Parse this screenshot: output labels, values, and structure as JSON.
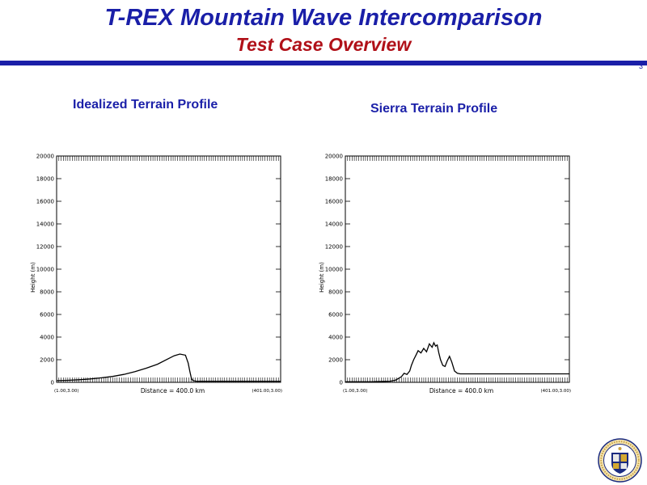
{
  "header": {
    "title": "T-REX Mountain Wave Intercomparison",
    "subtitle": "Test Case Overview",
    "page_number": "3",
    "title_color": "#1a1fa8",
    "subtitle_color": "#b01018"
  },
  "chart_data": [
    {
      "type": "line",
      "title": "Idealized Terrain Profile",
      "ylabel": "Height (m)",
      "xlabel": "Distance = 400.0 km",
      "xlim": [
        0,
        400
      ],
      "ylim": [
        0,
        20000
      ],
      "yticks": [
        0,
        2000,
        4000,
        6000,
        8000,
        10000,
        12000,
        14000,
        16000,
        18000,
        20000
      ],
      "corner_left": "(1.00,3.00)",
      "corner_right": "(401.00,3.00)",
      "series": [
        {
          "x": [
            0,
            20,
            40,
            60,
            80,
            100,
            120,
            140,
            160,
            180,
            200,
            210,
            220,
            230,
            235,
            238,
            240,
            241,
            243,
            246,
            250,
            260,
            280,
            300,
            320,
            340,
            360,
            380,
            400
          ],
          "y": [
            150,
            180,
            230,
            300,
            400,
            520,
            700,
            950,
            1250,
            1600,
            2100,
            2350,
            2500,
            2400,
            1700,
            950,
            500,
            300,
            180,
            120,
            100,
            100,
            100,
            100,
            100,
            100,
            100,
            100,
            100
          ]
        }
      ]
    },
    {
      "type": "line",
      "title": "Sierra Terrain Profile",
      "ylabel": "Height (m)",
      "xlabel": "Distance = 400.0 km",
      "xlim": [
        0,
        400
      ],
      "ylim": [
        0,
        20000
      ],
      "yticks": [
        0,
        2000,
        4000,
        6000,
        8000,
        10000,
        12000,
        14000,
        16000,
        18000,
        20000
      ],
      "corner_left": "(1.00,3.00)",
      "corner_right": "(401.00,3.00)",
      "series": [
        {
          "x": [
            0,
            50,
            80,
            90,
            100,
            105,
            110,
            115,
            118,
            122,
            126,
            130,
            135,
            140,
            145,
            150,
            155,
            158,
            161,
            164,
            167,
            170,
            174,
            178,
            182,
            186,
            190,
            195,
            200,
            205,
            210,
            215,
            220,
            230,
            250,
            300,
            350,
            400
          ],
          "y": [
            50,
            60,
            100,
            200,
            500,
            800,
            700,
            1000,
            1500,
            2000,
            2400,
            2800,
            2600,
            3000,
            2700,
            3400,
            3100,
            3500,
            3200,
            3300,
            2600,
            2000,
            1500,
            1400,
            1900,
            2300,
            1800,
            1000,
            800,
            750,
            750,
            750,
            750,
            750,
            750,
            750,
            750,
            750
          ]
        }
      ]
    }
  ]
}
